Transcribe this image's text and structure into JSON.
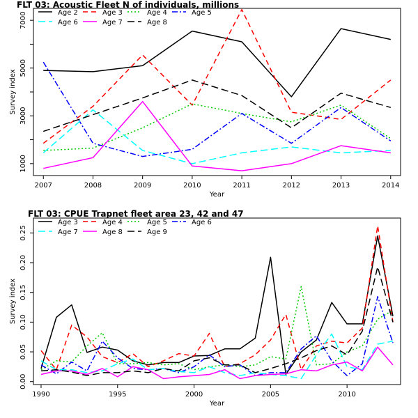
{
  "chart_data": [
    {
      "type": "line",
      "title": "FLT 03: Acoustic Fleet   N of individuals, millions",
      "xlabel": "Year",
      "ylabel": "Survey index",
      "x": [
        2007,
        2008,
        2009,
        2010,
        2011,
        2012,
        2013,
        2014
      ],
      "xlim": [
        2006.8,
        2014.2
      ],
      "ylim": [
        500,
        7500
      ],
      "xticks": [
        2007,
        2008,
        2009,
        2010,
        2011,
        2012,
        2013,
        2014
      ],
      "yticks": [
        1000,
        2000,
        3000,
        4000,
        5000,
        6000,
        7000
      ],
      "ytick_labels": [
        1000,
        3000,
        5000,
        7000
      ],
      "grid": false,
      "legend_position": "top-left",
      "series": [
        {
          "name": "Age 2",
          "color": "#000000",
          "dash": "solid",
          "values": [
            4900,
            4850,
            5100,
            6550,
            6100,
            3800,
            6650,
            6200
          ]
        },
        {
          "name": "Age 3",
          "color": "#ff0000",
          "dash": "dashed",
          "values": [
            1850,
            3400,
            5550,
            3450,
            7450,
            3150,
            2850,
            4500
          ]
        },
        {
          "name": "Age 4",
          "color": "#00cc00",
          "dash": "dotted",
          "values": [
            1550,
            1650,
            2500,
            3500,
            3100,
            2750,
            3450,
            2050
          ]
        },
        {
          "name": "Age 5",
          "color": "#0000ff",
          "dash": "dashdot",
          "values": [
            5250,
            1850,
            1300,
            1600,
            3100,
            1850,
            3350,
            1950
          ]
        },
        {
          "name": "Age 6",
          "color": "#00ffff",
          "dash": "longdash",
          "values": [
            1450,
            3250,
            1550,
            1000,
            1450,
            1700,
            1450,
            1550
          ]
        },
        {
          "name": "Age 7",
          "color": "#ff00ff",
          "dash": "solid",
          "values": [
            800,
            1250,
            3600,
            900,
            700,
            1000,
            1750,
            1450
          ]
        },
        {
          "name": "Age 8",
          "color": "#000000",
          "dash": "longdash",
          "values": [
            2350,
            3050,
            3750,
            4500,
            3850,
            2500,
            3950,
            3350
          ]
        }
      ]
    },
    {
      "type": "line",
      "title": "FLT 03: CPUE Trapnet fleet area 23, 42 and 47",
      "xlabel": "Year",
      "ylabel": "Survey index",
      "x": [
        1990,
        1991,
        1992,
        1993,
        1994,
        1995,
        1996,
        1997,
        1998,
        1999,
        2000,
        2001,
        2002,
        2003,
        2004,
        2005,
        2006,
        2007,
        2008,
        2009,
        2010,
        2011,
        2012,
        2013
      ],
      "xlim": [
        1989.5,
        2013.5
      ],
      "ylim": [
        -0.005,
        0.275
      ],
      "xticks": [
        1990,
        1995,
        2000,
        2005,
        2010
      ],
      "yticks": [
        0.0,
        0.05,
        0.1,
        0.15,
        0.2,
        0.25
      ],
      "ytick_labels": [
        "0.00",
        "0.05",
        "0.10",
        "0.15",
        "0.20",
        "0.25"
      ],
      "grid": false,
      "legend_position": "top-left",
      "series": [
        {
          "name": "Age 3",
          "color": "#000000",
          "dash": "solid",
          "values": [
            0.022,
            0.108,
            0.129,
            0.049,
            0.058,
            0.053,
            0.035,
            0.028,
            0.032,
            0.032,
            0.043,
            0.044,
            0.055,
            0.055,
            0.073,
            0.209,
            0.012,
            0.05,
            0.07,
            0.133,
            0.097,
            0.097,
            0.245,
            0.11
          ]
        },
        {
          "name": "Age 4",
          "color": "#ff0000",
          "dash": "dashed",
          "values": [
            0.052,
            0.02,
            0.095,
            0.075,
            0.042,
            0.032,
            0.047,
            0.025,
            0.035,
            0.047,
            0.043,
            0.081,
            0.025,
            0.03,
            0.045,
            0.07,
            0.113,
            0.02,
            0.06,
            0.068,
            0.065,
            0.09,
            0.262,
            0.1
          ]
        },
        {
          "name": "Age 5",
          "color": "#00cc00",
          "dash": "dotted",
          "values": [
            0.02,
            0.035,
            0.033,
            0.06,
            0.082,
            0.03,
            0.03,
            0.032,
            0.028,
            0.03,
            0.02,
            0.025,
            0.028,
            0.025,
            0.028,
            0.042,
            0.038,
            0.16,
            0.028,
            0.03,
            0.05,
            0.06,
            0.105,
            0.12
          ]
        },
        {
          "name": "Age 6",
          "color": "#0000ff",
          "dash": "dashdot",
          "values": [
            0.028,
            0.013,
            0.033,
            0.018,
            0.068,
            0.04,
            0.022,
            0.02,
            0.022,
            0.015,
            0.025,
            0.045,
            0.025,
            0.028,
            0.01,
            0.015,
            0.015,
            0.055,
            0.077,
            0.035,
            0.01,
            0.03,
            0.143,
            0.065
          ]
        },
        {
          "name": "Age 7",
          "color": "#00ffff",
          "dash": "longdash",
          "values": [
            0.035,
            0.02,
            0.02,
            0.015,
            0.018,
            0.03,
            0.038,
            0.02,
            0.022,
            0.017,
            0.015,
            0.025,
            0.015,
            0.01,
            0.015,
            0.012,
            0.01,
            0.005,
            0.045,
            0.08,
            0.025,
            0.02,
            0.063,
            0.068
          ]
        },
        {
          "name": "Age 8",
          "color": "#ff00ff",
          "dash": "solid",
          "values": [
            0.012,
            0.018,
            0.018,
            0.012,
            0.022,
            0.008,
            0.025,
            0.02,
            0.005,
            0.008,
            0.01,
            0.012,
            0.02,
            0.005,
            0.01,
            0.012,
            0.013,
            0.02,
            0.018,
            0.028,
            0.033,
            0.018,
            0.058,
            0.028
          ]
        },
        {
          "name": "Age 9",
          "color": "#000000",
          "dash": "longdash",
          "values": [
            0.018,
            0.02,
            0.016,
            0.01,
            0.015,
            0.015,
            0.018,
            0.015,
            0.022,
            0.018,
            0.035,
            0.04,
            0.028,
            0.028,
            0.015,
            0.022,
            0.03,
            0.04,
            0.052,
            0.06,
            0.045,
            0.085,
            0.193,
            0.1
          ]
        }
      ]
    }
  ]
}
